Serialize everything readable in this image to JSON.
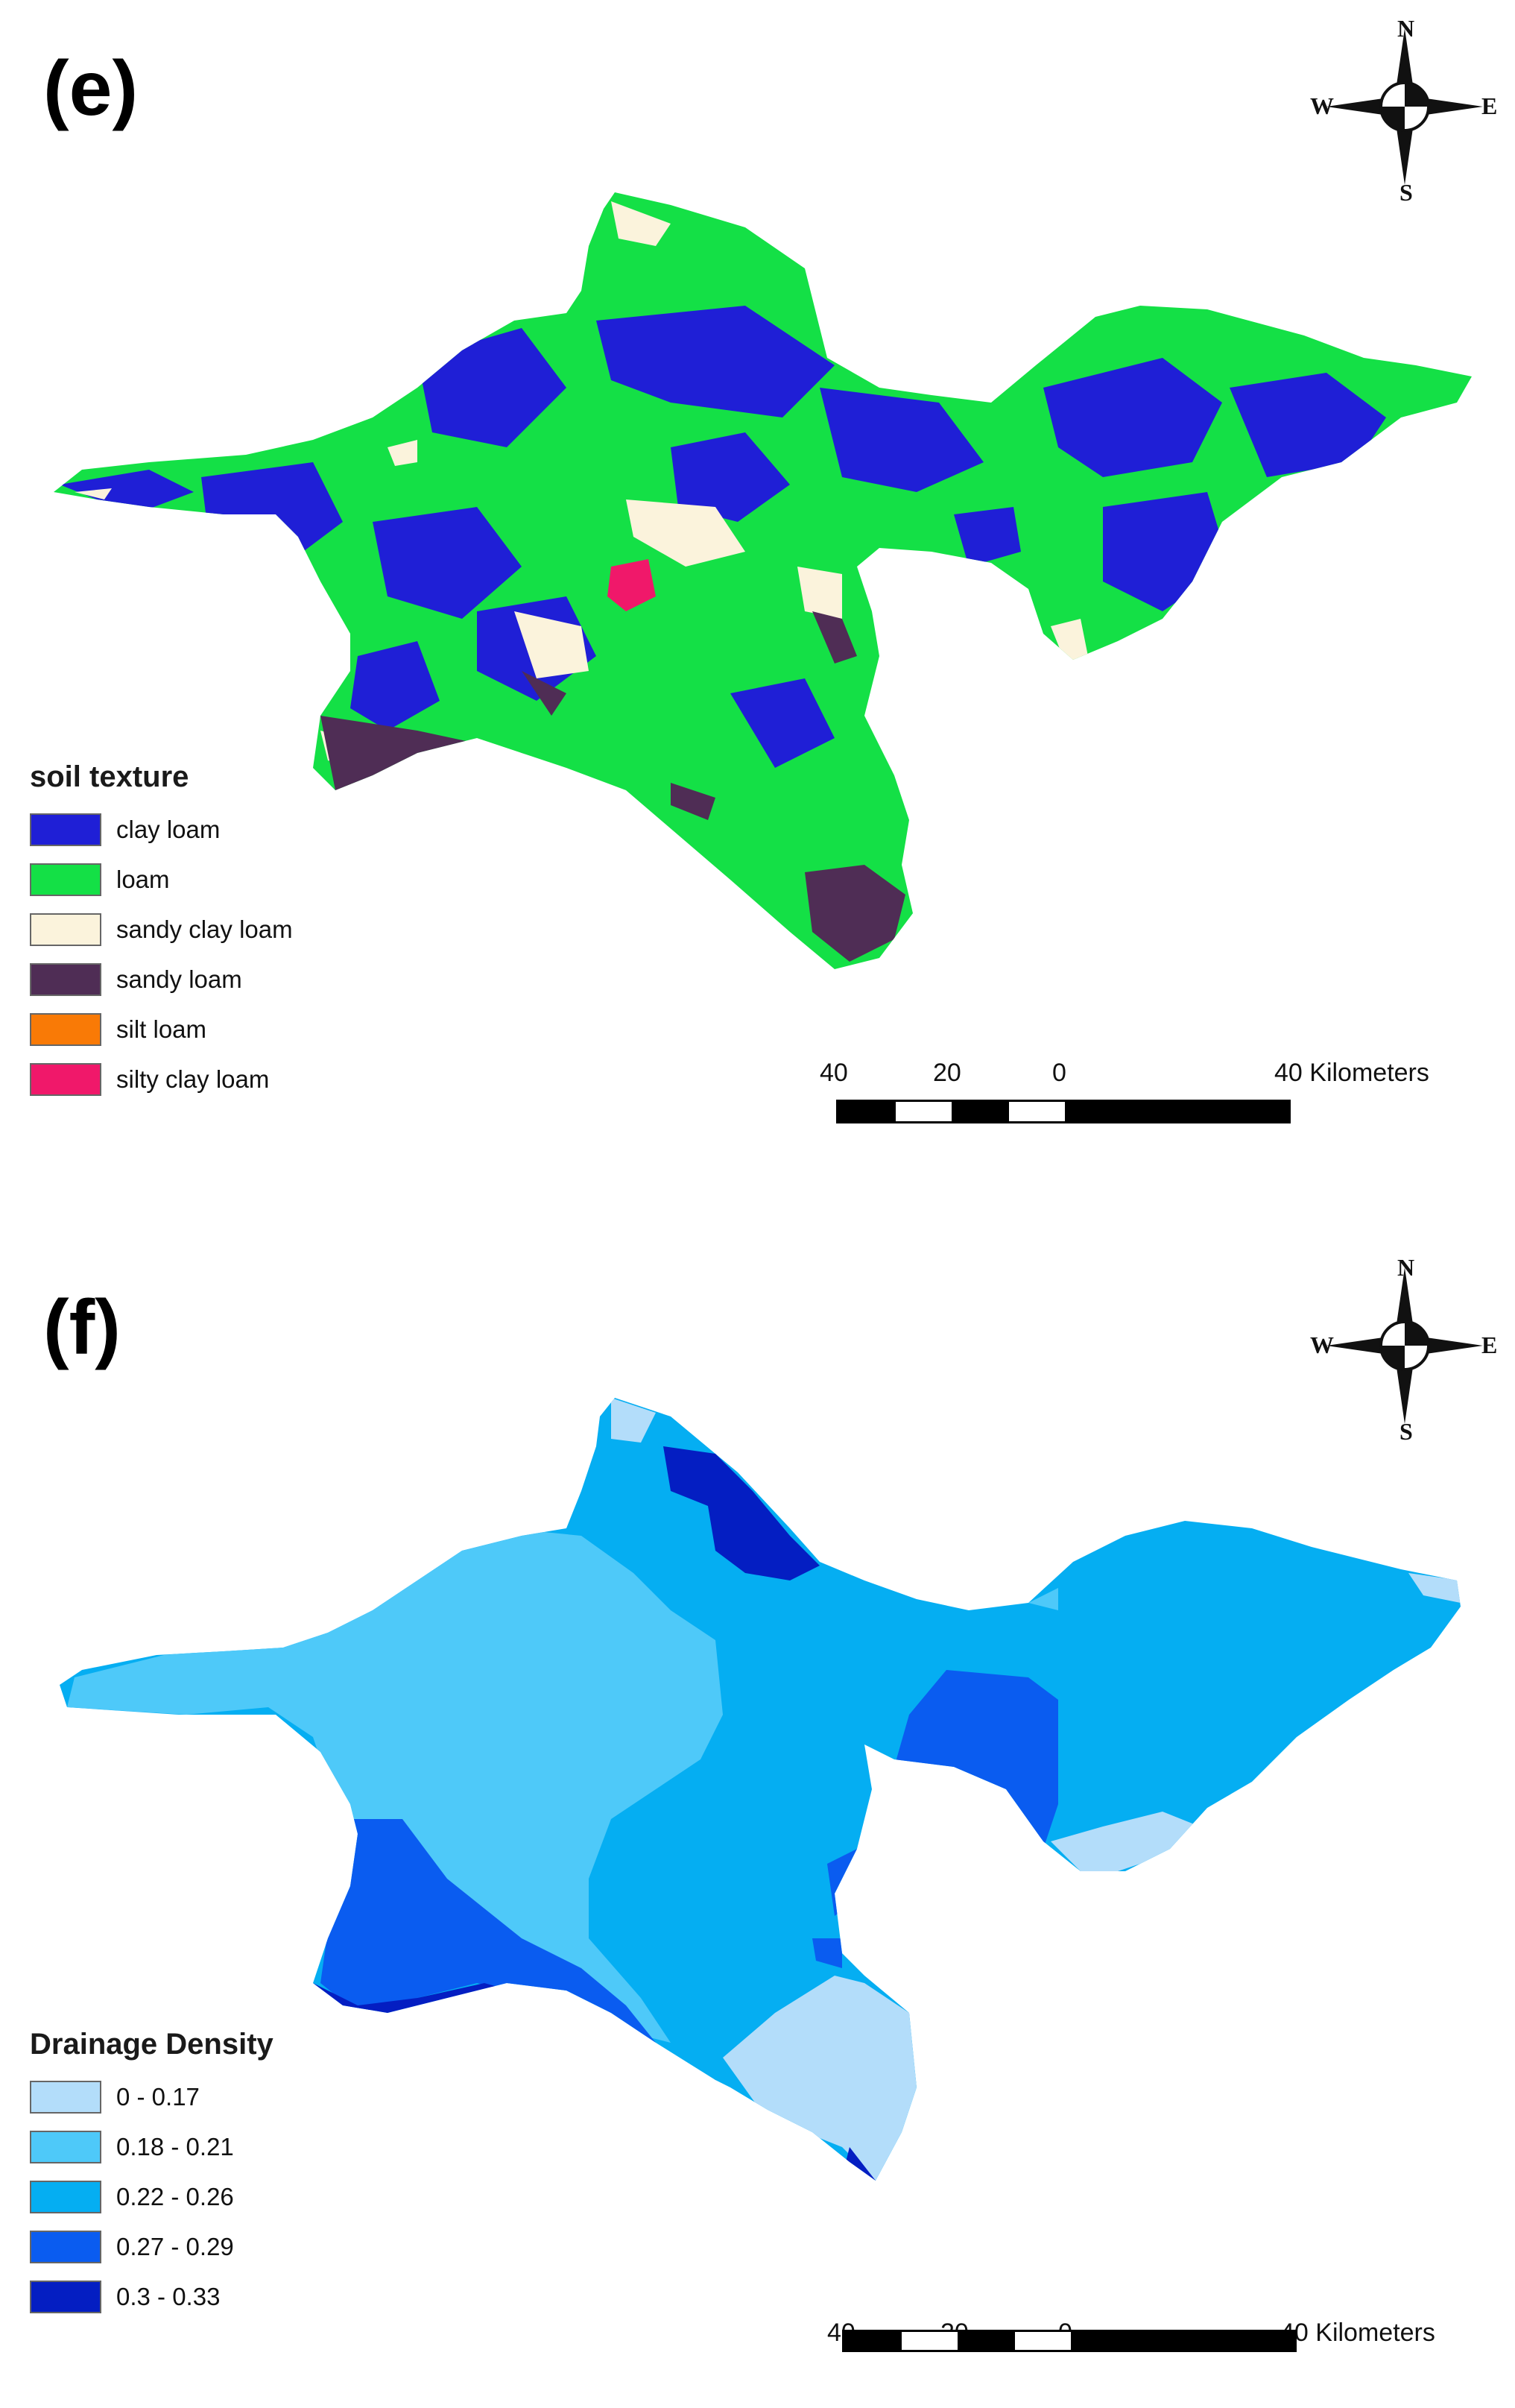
{
  "panels": [
    {
      "label": "(e)",
      "legend": {
        "title": "soil texture",
        "items": [
          {
            "label": "clay loam",
            "color": "#1f1fd6"
          },
          {
            "label": "loam",
            "color": "#14e046"
          },
          {
            "label": "sandy clay loam",
            "color": "#fbf3dc"
          },
          {
            "label": "sandy loam",
            "color": "#4f2d55"
          },
          {
            "label": "silt loam",
            "color": "#f97a06"
          },
          {
            "label": "silty clay loam",
            "color": "#f0186a"
          }
        ]
      }
    },
    {
      "label": "(f)",
      "legend": {
        "title": "Drainage Density",
        "items": [
          {
            "label": "0 - 0.17",
            "color": "#b3ddfa"
          },
          {
            "label": "0.18 - 0.21",
            "color": "#4ec9f9"
          },
          {
            "label": "0.22 - 0.26",
            "color": "#05aef2"
          },
          {
            "label": "0.27 - 0.29",
            "color": "#0a5cf0"
          },
          {
            "label": "0.3 - 0.33",
            "color": "#041ec2"
          }
        ]
      }
    }
  ],
  "compass": {
    "n": "N",
    "s": "S",
    "e": "E",
    "w": "W",
    "icon": "north-arrow-compass-icon"
  },
  "scalebar": {
    "ticks": [
      "40",
      "20",
      "0"
    ],
    "end_label": "40 Kilometers"
  }
}
